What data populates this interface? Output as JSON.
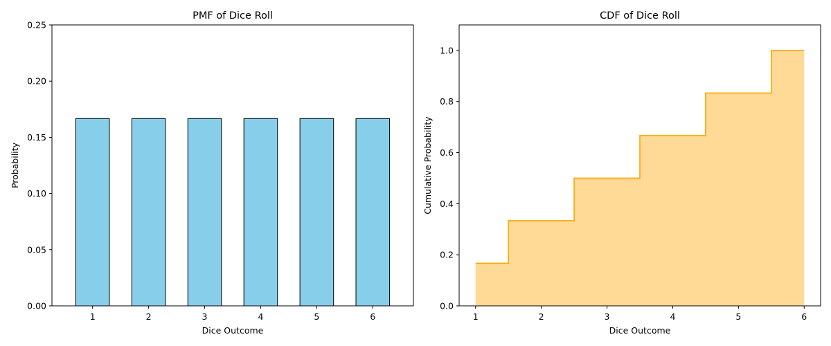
{
  "colors": {
    "bar_fill": "#87CEEB",
    "bar_edge": "#000000",
    "cdf_line": "#FFA500",
    "cdf_fill": "#FFDA96"
  },
  "chart_data": [
    {
      "type": "bar",
      "title": "PMF of Dice Roll",
      "xlabel": "Dice Outcome",
      "ylabel": "Probability",
      "categories": [
        "1",
        "2",
        "3",
        "4",
        "5",
        "6"
      ],
      "values": [
        0.1667,
        0.1667,
        0.1667,
        0.1667,
        0.1667,
        0.1667
      ],
      "ylim": [
        0,
        0.25
      ],
      "yticks": [
        "0.00",
        "0.05",
        "0.10",
        "0.15",
        "0.20",
        "0.25"
      ],
      "grid": false
    },
    {
      "type": "area",
      "title": "CDF of Dice Roll",
      "xlabel": "Dice Outcome",
      "ylabel": "Cumulative Probability",
      "step": "mid",
      "x": [
        1,
        2,
        3,
        4,
        5,
        6
      ],
      "values": [
        0.1667,
        0.3333,
        0.5,
        0.6667,
        0.8333,
        1.0
      ],
      "xlim": [
        0.75,
        6.25
      ],
      "ylim": [
        0,
        1.1
      ],
      "xticks": [
        "1",
        "2",
        "3",
        "4",
        "5",
        "6"
      ],
      "yticks": [
        "0.0",
        "0.2",
        "0.4",
        "0.6",
        "0.8",
        "1.0"
      ],
      "grid": false
    }
  ]
}
